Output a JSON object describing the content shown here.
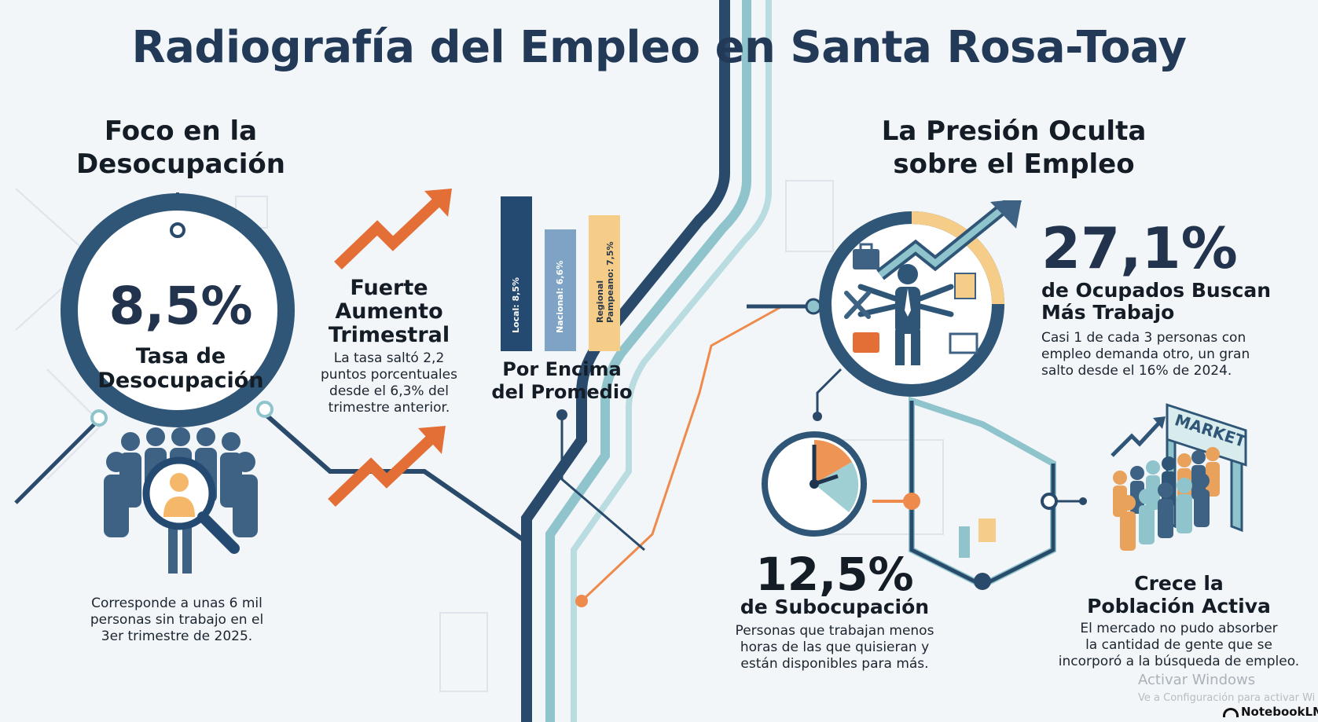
{
  "title": "Radiografía del Empleo en Santa Rosa-Toay",
  "left_section": {
    "heading_line1": "Foco en la",
    "heading_line2": "Desocupación",
    "rate_value": "8,5%",
    "rate_label_line1": "Tasa de",
    "rate_label_line2": "Desocupación",
    "note_line1": "Corresponde a unas 6 mil",
    "note_line2": "personas sin trabajo en el",
    "note_line3": "3er trimestre de 2025."
  },
  "increase": {
    "heading_line1": "Fuerte",
    "heading_line2": "Aumento",
    "heading_line3": "Trimestral",
    "text_line1": "La tasa saltó 2,2",
    "text_line2": "puntos porcentuales",
    "text_line3": "desde el 6,3% del",
    "text_line4": "trimestre anterior."
  },
  "comparison": {
    "heading_line1": "Por Encima",
    "heading_line2": "del Promedio",
    "bars": [
      {
        "label": "Local: 8,5%",
        "value": 8.5,
        "color": "#244a72"
      },
      {
        "label": "Nacional: 6,6%",
        "value": 6.6,
        "color": "#7fa3c4"
      },
      {
        "label_line1": "Regional",
        "label_line2": "Pampeano: 7,5%",
        "value": 7.5,
        "color": "#f5cc88"
      }
    ]
  },
  "right_section": {
    "heading_line1": "La Presión Oculta",
    "heading_line2": "sobre el Empleo"
  },
  "seeking": {
    "value": "27,1%",
    "label_line1": "de Ocupados Buscan",
    "label_line2": "Más Trabajo",
    "text_line1": "Casi 1 de cada 3 personas con",
    "text_line2": "empleo demanda otro, un gran",
    "text_line3": "salto desde el 16% de 2024."
  },
  "underemployment": {
    "value": "12,5%",
    "label": "de Subocupación",
    "text_line1": "Personas que trabajan menos",
    "text_line2": "horas de las que quisieran y",
    "text_line3": "están disponibles para más."
  },
  "active_population": {
    "heading_line1": "Crece la",
    "heading_line2": "Población Activa",
    "text_line1": "El mercado no pudo absorber",
    "text_line2": "la cantidad de gente que se",
    "text_line3": "incorporó a la búsqueda de empleo.",
    "sign": "MARKET"
  },
  "watermark": {
    "line1": "Activar Windows",
    "line2": "Ve a Configuración para activar Wi",
    "brand": "NotebookLM"
  },
  "colors": {
    "navy": "#2a4a6b",
    "teal": "#8fc4cc",
    "orange": "#ee8a4c",
    "yellow": "#f5cc88"
  },
  "icons": [
    "trend-arrow-icon",
    "people-group-icon",
    "magnifier-icon",
    "worker-icon",
    "clock-icon",
    "market-gate-icon",
    "notebooklm-logo-icon"
  ]
}
